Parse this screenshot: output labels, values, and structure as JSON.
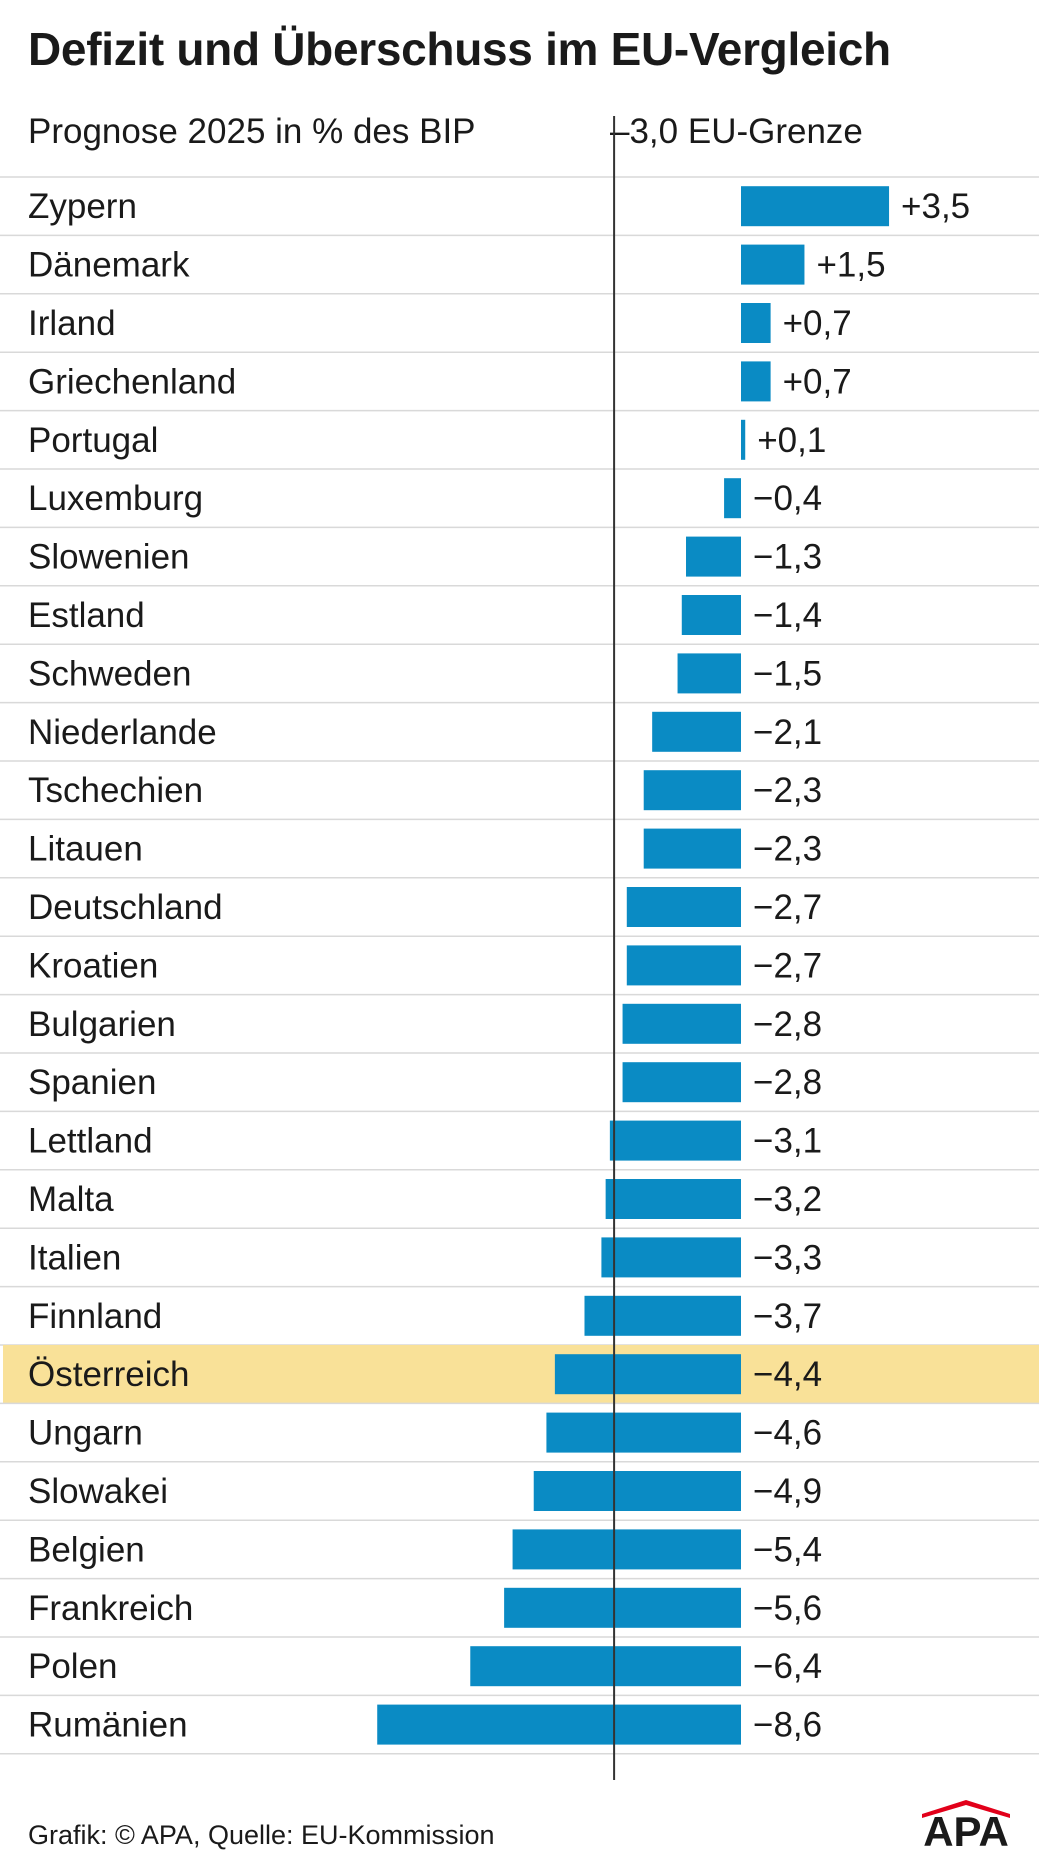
{
  "chart_data": {
    "type": "bar",
    "orientation": "horizontal",
    "title": "Defizit und Überschuss im EU-Vergleich",
    "subtitle": "Prognose 2025 in % des BIP",
    "reference_line": {
      "value": -3.0,
      "label": "–3,0 EU-Grenze"
    },
    "categories": [
      "Zypern",
      "Dänemark",
      "Irland",
      "Griechenland",
      "Portugal",
      "Luxemburg",
      "Slowenien",
      "Estland",
      "Schweden",
      "Niederlande",
      "Tschechien",
      "Litauen",
      "Deutschland",
      "Kroatien",
      "Bulgarien",
      "Spanien",
      "Lettland",
      "Malta",
      "Italien",
      "Finnland",
      "Österreich",
      "Ungarn",
      "Slowakei",
      "Belgien",
      "Frankreich",
      "Polen",
      "Rumänien"
    ],
    "values": [
      3.5,
      1.5,
      0.7,
      0.7,
      0.1,
      -0.4,
      -1.3,
      -1.4,
      -1.5,
      -2.1,
      -2.3,
      -2.3,
      -2.7,
      -2.7,
      -2.8,
      -2.8,
      -3.1,
      -3.2,
      -3.3,
      -3.7,
      -4.4,
      -4.6,
      -4.9,
      -5.4,
      -5.6,
      -6.4,
      -8.6
    ],
    "value_labels": [
      "+3,5",
      "+1,5",
      "+0,7",
      "+0,7",
      "+0,1",
      "−0,4",
      "−1,3",
      "−1,4",
      "−1,5",
      "−2,1",
      "−2,3",
      "−2,3",
      "−2,7",
      "−2,7",
      "−2,8",
      "−2,8",
      "−3,1",
      "−3,2",
      "−3,3",
      "−3,7",
      "−4,4",
      "−4,6",
      "−4,9",
      "−5,4",
      "−5,6",
      "−6,4",
      "−8,6"
    ],
    "highlighted_category": "Österreich",
    "xlim": [
      -8.6,
      3.5
    ],
    "grid": false,
    "legend": "none"
  },
  "colors": {
    "bar": "#0a8bc4",
    "highlight_row": "#f9e198",
    "row_divider": "#d9d9d9",
    "reference_line": "#333333",
    "text": "#1a1a1a"
  },
  "footer": {
    "source": "Grafik: © APA, Quelle: EU-Kommission",
    "logo_text": "APA"
  }
}
